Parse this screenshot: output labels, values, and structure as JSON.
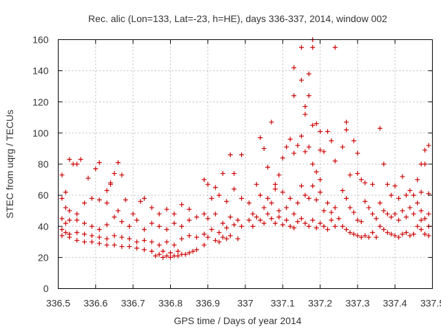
{
  "chart_data": {
    "type": "scatter",
    "title": "Rec. alic (Lon=133, Lat=-23, h=HE), days 336-337, 2014, window 002",
    "xlabel": "GPS time / Days of year 2014",
    "ylabel": "STEC from uqrg / TECUs",
    "xlim": [
      336.5,
      337.5
    ],
    "ylim": [
      0,
      160
    ],
    "xticks": [
      336.5,
      336.6,
      336.7,
      336.8,
      336.9,
      337.0,
      337.1,
      337.2,
      337.3,
      337.4,
      337.5
    ],
    "xtick_labels": [
      "336.5",
      "336.6",
      "336.7",
      "336.8",
      "336.9",
      "337",
      "337.1",
      "337.2",
      "337.3",
      "337.4",
      "337.5"
    ],
    "yticks": [
      0,
      20,
      40,
      60,
      80,
      100,
      120,
      140,
      160
    ],
    "ytick_labels": [
      "0",
      "20",
      "40",
      "60",
      "80",
      "100",
      "120",
      "140",
      "160"
    ],
    "grid": true,
    "legend": "none",
    "series": [
      {
        "color": "#cc0000",
        "marker": "plus",
        "points": [
          [
            336.51,
            73
          ],
          [
            336.52,
            62
          ],
          [
            336.53,
            83
          ],
          [
            336.54,
            80
          ],
          [
            336.55,
            80
          ],
          [
            336.56,
            83
          ],
          [
            336.58,
            71
          ],
          [
            336.6,
            77
          ],
          [
            336.61,
            81
          ],
          [
            336.63,
            63
          ],
          [
            336.64,
            67
          ],
          [
            336.65,
            74
          ],
          [
            336.66,
            81
          ],
          [
            336.67,
            73
          ],
          [
            336.64,
            68
          ],
          [
            336.51,
            58
          ],
          [
            336.52,
            52
          ],
          [
            336.53,
            50
          ],
          [
            336.55,
            48
          ],
          [
            336.57,
            55
          ],
          [
            336.59,
            58
          ],
          [
            336.61,
            57
          ],
          [
            336.63,
            55
          ],
          [
            336.66,
            50
          ],
          [
            336.68,
            57
          ],
          [
            336.7,
            48
          ],
          [
            336.72,
            56
          ],
          [
            336.73,
            58
          ],
          [
            336.75,
            52
          ],
          [
            336.77,
            48
          ],
          [
            336.79,
            51
          ],
          [
            336.81,
            48
          ],
          [
            336.83,
            54
          ],
          [
            336.85,
            51
          ],
          [
            336.51,
            45
          ],
          [
            336.52,
            42
          ],
          [
            336.53,
            44
          ],
          [
            336.55,
            44
          ],
          [
            336.57,
            42
          ],
          [
            336.59,
            40
          ],
          [
            336.61,
            38
          ],
          [
            336.63,
            41
          ],
          [
            336.65,
            46
          ],
          [
            336.67,
            43
          ],
          [
            336.69,
            40
          ],
          [
            336.71,
            44
          ],
          [
            336.73,
            38
          ],
          [
            336.75,
            42
          ],
          [
            336.77,
            40
          ],
          [
            336.79,
            38
          ],
          [
            336.81,
            42
          ],
          [
            336.83,
            40
          ],
          [
            336.85,
            44
          ],
          [
            336.87,
            46
          ],
          [
            336.89,
            48
          ],
          [
            336.51,
            38
          ],
          [
            336.52,
            36
          ],
          [
            336.53,
            35
          ],
          [
            336.55,
            36
          ],
          [
            336.57,
            35
          ],
          [
            336.59,
            34
          ],
          [
            336.61,
            33
          ],
          [
            336.63,
            32
          ],
          [
            336.65,
            34
          ],
          [
            336.67,
            33
          ],
          [
            336.69,
            32
          ],
          [
            336.71,
            30
          ],
          [
            336.73,
            31
          ],
          [
            336.75,
            30
          ],
          [
            336.77,
            28
          ],
          [
            336.79,
            30
          ],
          [
            336.81,
            28
          ],
          [
            336.83,
            32
          ],
          [
            336.85,
            34
          ],
          [
            336.87,
            33
          ],
          [
            336.89,
            35
          ],
          [
            336.51,
            34
          ],
          [
            336.53,
            33
          ],
          [
            336.55,
            31
          ],
          [
            336.57,
            30
          ],
          [
            336.59,
            30
          ],
          [
            336.61,
            29
          ],
          [
            336.63,
            28
          ],
          [
            336.65,
            28
          ],
          [
            336.67,
            27
          ],
          [
            336.69,
            27
          ],
          [
            336.71,
            26
          ],
          [
            336.73,
            25
          ],
          [
            336.75,
            24
          ],
          [
            336.77,
            22
          ],
          [
            336.79,
            21
          ],
          [
            336.81,
            21
          ],
          [
            336.83,
            22
          ],
          [
            336.85,
            23
          ],
          [
            336.87,
            25
          ],
          [
            336.89,
            28
          ],
          [
            336.76,
            21
          ],
          [
            336.78,
            20
          ],
          [
            336.8,
            20
          ],
          [
            336.82,
            21
          ],
          [
            336.84,
            22
          ],
          [
            336.86,
            24
          ],
          [
            336.78,
            24
          ],
          [
            336.8,
            23
          ],
          [
            336.82,
            24
          ],
          [
            336.89,
            70
          ],
          [
            336.9,
            67
          ],
          [
            336.92,
            65
          ],
          [
            336.94,
            74
          ],
          [
            336.96,
            86
          ],
          [
            336.97,
            74
          ],
          [
            336.99,
            86
          ],
          [
            336.91,
            58
          ],
          [
            336.93,
            60
          ],
          [
            336.95,
            56
          ],
          [
            336.97,
            64
          ],
          [
            336.99,
            58
          ],
          [
            336.9,
            45
          ],
          [
            336.92,
            48
          ],
          [
            336.94,
            42
          ],
          [
            336.96,
            46
          ],
          [
            336.98,
            44
          ],
          [
            336.91,
            38
          ],
          [
            336.93,
            36
          ],
          [
            336.95,
            39
          ],
          [
            336.97,
            41
          ],
          [
            336.99,
            40
          ],
          [
            336.9,
            33
          ],
          [
            336.92,
            31
          ],
          [
            336.94,
            33
          ],
          [
            336.96,
            34
          ],
          [
            336.98,
            32
          ],
          [
            336.93,
            30
          ],
          [
            336.95,
            32
          ],
          [
            337.01,
            55
          ],
          [
            337.02,
            48
          ],
          [
            337.03,
            67
          ],
          [
            337.04,
            97
          ],
          [
            337.05,
            90
          ],
          [
            337.06,
            78
          ],
          [
            337.07,
            107
          ],
          [
            337.08,
            67
          ],
          [
            337.09,
            73
          ],
          [
            337.1,
            84
          ],
          [
            337.11,
            91
          ],
          [
            337.12,
            96
          ],
          [
            337.13,
            87
          ],
          [
            337.14,
            92
          ],
          [
            337.01,
            44
          ],
          [
            337.02,
            40
          ],
          [
            337.03,
            46
          ],
          [
            337.04,
            44
          ],
          [
            337.05,
            42
          ],
          [
            337.06,
            48
          ],
          [
            337.07,
            45
          ],
          [
            337.08,
            42
          ],
          [
            337.09,
            46
          ],
          [
            337.1,
            41
          ],
          [
            337.11,
            44
          ],
          [
            337.12,
            40
          ],
          [
            337.13,
            39
          ],
          [
            337.14,
            43
          ],
          [
            337.04,
            60
          ],
          [
            337.06,
            58
          ],
          [
            337.08,
            64
          ],
          [
            337.1,
            62
          ],
          [
            337.12,
            58
          ],
          [
            337.14,
            55
          ],
          [
            337.05,
            52
          ],
          [
            337.07,
            55
          ],
          [
            337.09,
            50
          ],
          [
            337.11,
            52
          ],
          [
            337.13,
            48
          ],
          [
            337.13,
            124
          ],
          [
            337.13,
            142
          ],
          [
            337.15,
            134
          ],
          [
            337.15,
            155
          ],
          [
            337.16,
            117
          ],
          [
            337.16,
            112
          ],
          [
            337.17,
            124
          ],
          [
            337.17,
            138
          ],
          [
            337.18,
            160
          ],
          [
            337.18,
            155
          ],
          [
            337.18,
            105
          ],
          [
            337.19,
            106
          ],
          [
            337.2,
            101
          ],
          [
            337.2,
            89
          ],
          [
            337.15,
            98
          ],
          [
            337.16,
            88
          ],
          [
            337.17,
            91
          ],
          [
            337.18,
            80
          ],
          [
            337.19,
            75
          ],
          [
            337.2,
            70
          ],
          [
            337.21,
            88
          ],
          [
            337.22,
            101
          ],
          [
            337.23,
            95
          ],
          [
            337.24,
            82
          ],
          [
            337.15,
            66
          ],
          [
            337.16,
            60
          ],
          [
            337.17,
            58
          ],
          [
            337.18,
            66
          ],
          [
            337.19,
            57
          ],
          [
            337.2,
            62
          ],
          [
            337.21,
            50
          ],
          [
            337.22,
            55
          ],
          [
            337.23,
            49
          ],
          [
            337.24,
            52
          ],
          [
            337.25,
            45
          ],
          [
            337.15,
            45
          ],
          [
            337.16,
            42
          ],
          [
            337.17,
            40
          ],
          [
            337.18,
            44
          ],
          [
            337.19,
            39
          ],
          [
            337.2,
            42
          ],
          [
            337.21,
            40
          ],
          [
            337.22,
            38
          ],
          [
            337.23,
            44
          ],
          [
            337.24,
            40
          ],
          [
            337.24,
            155
          ],
          [
            337.26,
            91
          ],
          [
            337.27,
            107
          ],
          [
            337.27,
            102
          ],
          [
            337.28,
            73
          ],
          [
            337.29,
            95
          ],
          [
            337.3,
            87
          ],
          [
            337.3,
            74
          ],
          [
            337.31,
            70
          ],
          [
            337.32,
            68
          ],
          [
            337.34,
            67
          ],
          [
            337.26,
            63
          ],
          [
            337.27,
            58
          ],
          [
            337.28,
            52
          ],
          [
            337.29,
            49
          ],
          [
            337.3,
            44
          ],
          [
            337.31,
            43
          ],
          [
            337.32,
            56
          ],
          [
            337.33,
            52
          ],
          [
            337.34,
            48
          ],
          [
            337.35,
            45
          ],
          [
            337.26,
            40
          ],
          [
            337.27,
            38
          ],
          [
            337.28,
            36
          ],
          [
            337.29,
            35
          ],
          [
            337.3,
            34
          ],
          [
            337.31,
            33
          ],
          [
            337.32,
            34
          ],
          [
            337.33,
            33
          ],
          [
            337.34,
            36
          ],
          [
            337.35,
            33
          ],
          [
            337.36,
            103
          ],
          [
            337.37,
            80
          ],
          [
            337.38,
            67
          ],
          [
            337.39,
            60
          ],
          [
            337.4,
            66
          ],
          [
            337.41,
            58
          ],
          [
            337.42,
            72
          ],
          [
            337.43,
            60
          ],
          [
            337.44,
            63
          ],
          [
            337.45,
            60
          ],
          [
            337.36,
            55
          ],
          [
            337.37,
            50
          ],
          [
            337.38,
            48
          ],
          [
            337.39,
            46
          ],
          [
            337.4,
            48
          ],
          [
            337.41,
            44
          ],
          [
            337.42,
            50
          ],
          [
            337.43,
            46
          ],
          [
            337.44,
            52
          ],
          [
            337.45,
            48
          ],
          [
            337.36,
            40
          ],
          [
            337.37,
            38
          ],
          [
            337.38,
            36
          ],
          [
            337.39,
            35
          ],
          [
            337.4,
            34
          ],
          [
            337.41,
            33
          ],
          [
            337.42,
            35
          ],
          [
            337.43,
            36
          ],
          [
            337.44,
            34
          ],
          [
            337.45,
            35
          ],
          [
            337.46,
            70
          ],
          [
            337.47,
            62
          ],
          [
            337.47,
            80
          ],
          [
            337.48,
            89
          ],
          [
            337.48,
            80
          ],
          [
            337.49,
            92
          ],
          [
            337.49,
            61
          ],
          [
            337.46,
            55
          ],
          [
            337.47,
            50
          ],
          [
            337.48,
            45
          ],
          [
            337.49,
            48
          ],
          [
            337.46,
            40
          ],
          [
            337.47,
            38
          ],
          [
            337.48,
            35
          ],
          [
            337.49,
            34
          ],
          [
            337.47,
            44
          ],
          [
            337.49,
            40
          ]
        ]
      }
    ]
  }
}
